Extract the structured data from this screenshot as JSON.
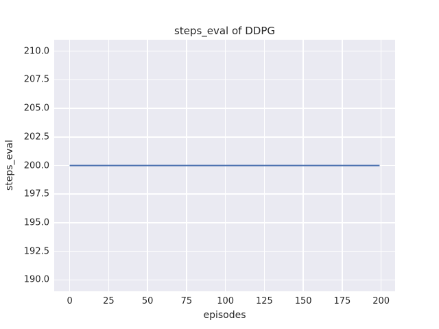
{
  "chart_data": {
    "type": "line",
    "title": "steps_eval of DDPG",
    "xlabel": "episodes",
    "ylabel": "steps_eval",
    "xlim": [
      -9.95,
      208.95
    ],
    "ylim": [
      189.0,
      211.0
    ],
    "xticks": [
      0,
      25,
      50,
      75,
      100,
      125,
      150,
      175,
      200
    ],
    "xtick_labels": [
      "0",
      "25",
      "50",
      "75",
      "100",
      "125",
      "150",
      "175",
      "200"
    ],
    "yticks": [
      190.0,
      192.5,
      195.0,
      197.5,
      200.0,
      202.5,
      205.0,
      207.5,
      210.0
    ],
    "ytick_labels": [
      "190.0",
      "192.5",
      "195.0",
      "197.5",
      "200.0",
      "202.5",
      "205.0",
      "207.5",
      "210.0"
    ],
    "grid": true,
    "legend": "none",
    "style": "seaborn-darkgrid",
    "colors": {
      "figure_bg": "#ffffff",
      "plot_bg": "#eaeaf2",
      "gridline": "#ffffff",
      "text": "#262626"
    },
    "series": [
      {
        "name": "steps_eval",
        "color": "#4c72b0",
        "linewidth": 2,
        "x": [
          0,
          199
        ],
        "y": [
          200,
          200
        ],
        "note": "constant value 200 for all episodes 0-199"
      }
    ]
  }
}
